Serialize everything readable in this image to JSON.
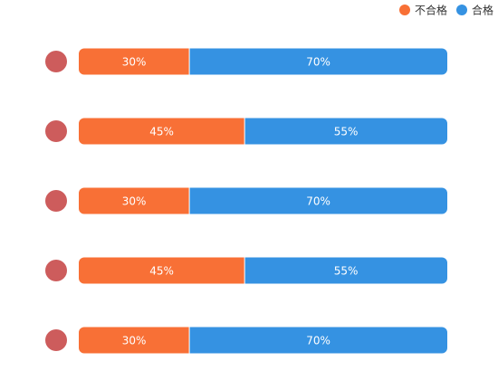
{
  "chart_data": {
    "type": "bar",
    "orientation": "horizontal",
    "stacked": true,
    "percent_stacked": true,
    "legend_position": "top-right",
    "grid": false,
    "categories": [
      "",
      "",
      "",
      "",
      ""
    ],
    "series": [
      {
        "name": "不合格",
        "color": "#f87036",
        "values": [
          30,
          45,
          30,
          45,
          30
        ]
      },
      {
        "name": "合格",
        "color": "#3592e2",
        "values": [
          70,
          55,
          70,
          55,
          70
        ]
      }
    ],
    "data_labels": [
      [
        "30%",
        "45%",
        "30%",
        "45%",
        "30%"
      ],
      [
        "70%",
        "55%",
        "70%",
        "55%",
        "70%"
      ]
    ],
    "category_marker_color": "#cd5c5c"
  }
}
